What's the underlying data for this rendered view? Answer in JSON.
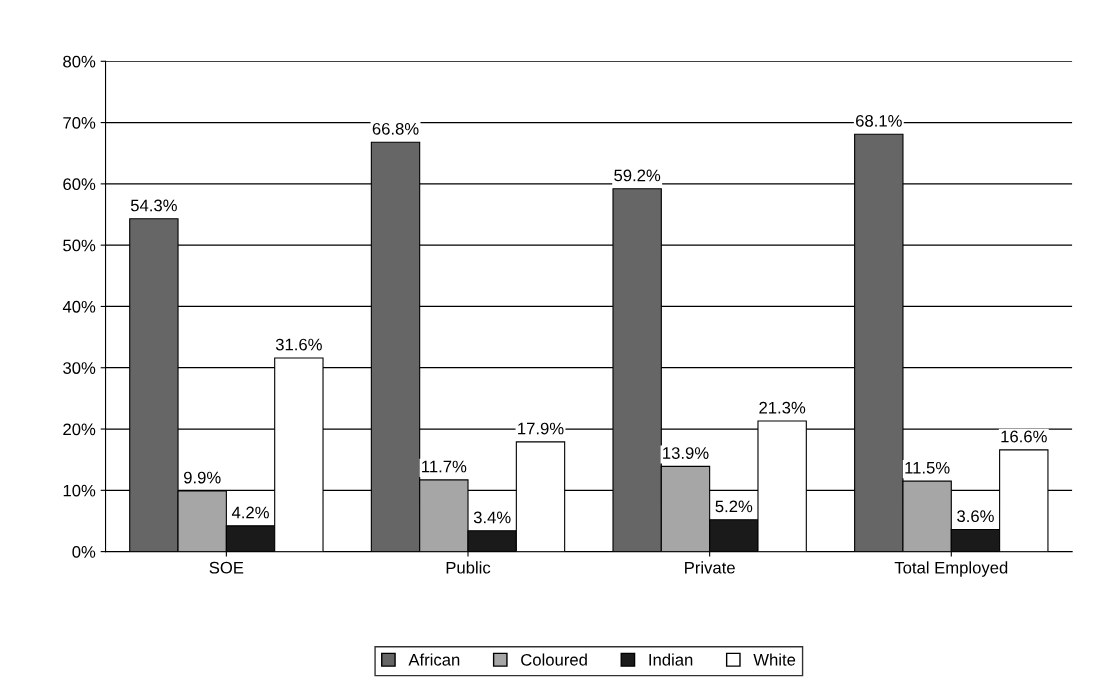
{
  "chart_data": {
    "type": "bar",
    "categories": [
      "SOE",
      "Public",
      "Private",
      "Total Employed"
    ],
    "series": [
      {
        "name": "African",
        "color": "#666666",
        "values": [
          54.3,
          66.8,
          59.2,
          68.1
        ],
        "value_labels": [
          "54.3%",
          "66.8%",
          "59.2%",
          "68.1%"
        ]
      },
      {
        "name": "Coloured",
        "color": "#a6a6a6",
        "values": [
          9.9,
          11.7,
          13.9,
          11.5
        ],
        "value_labels": [
          "9.9%",
          "11.7%",
          "13.9%",
          "11.5%"
        ]
      },
      {
        "name": "Indian",
        "color": "#1a1a1a",
        "values": [
          4.2,
          3.4,
          5.2,
          3.6
        ],
        "value_labels": [
          "4.2%",
          "3.4%",
          "5.2%",
          "3.6%"
        ]
      },
      {
        "name": "White",
        "color": "#ffffff",
        "values": [
          31.6,
          17.9,
          21.3,
          16.6
        ],
        "value_labels": [
          "31.6%",
          "17.9%",
          "21.3%",
          "16.6%"
        ]
      }
    ],
    "ylim": [
      0,
      80
    ],
    "yticks": [
      {
        "value": 0,
        "label": "0%"
      },
      {
        "value": 10,
        "label": "10%"
      },
      {
        "value": 20,
        "label": "20%"
      },
      {
        "value": 30,
        "label": "30%"
      },
      {
        "value": 40,
        "label": "40%"
      },
      {
        "value": 50,
        "label": "50%"
      },
      {
        "value": 60,
        "label": "60%"
      },
      {
        "value": 70,
        "label": "70%"
      },
      {
        "value": 80,
        "label": "80%"
      }
    ],
    "grid": "y",
    "legend": "bottom"
  }
}
